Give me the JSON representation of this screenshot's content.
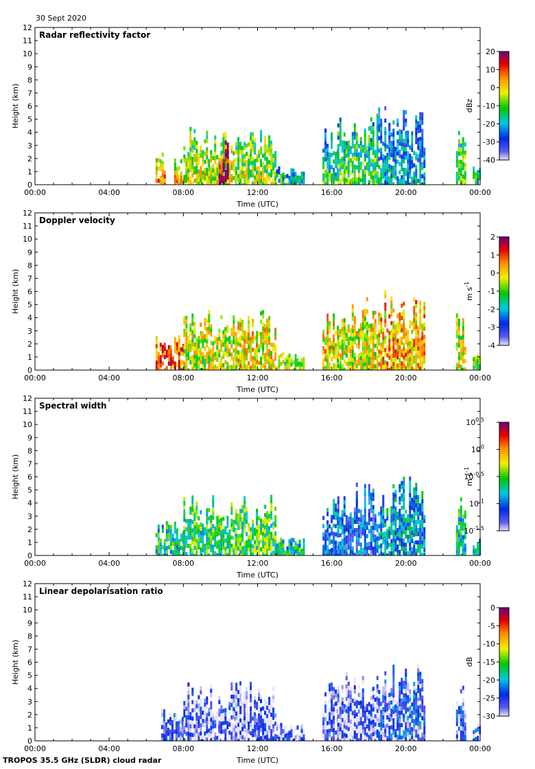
{
  "date_label": "30 Sept 2020",
  "footer_label": "TROPOS 35.5 GHz (SLDR) cloud radar",
  "chart_data": [
    {
      "type": "heatmap",
      "title": "Radar reflectivity factor",
      "xlabel": "Time (UTC)",
      "ylabel": "Height (km)",
      "x_ticks": [
        "00:00",
        "04:00",
        "08:00",
        "12:00",
        "16:00",
        "20:00",
        "00:00"
      ],
      "xlim_hours": [
        0,
        24
      ],
      "ylim_km": [
        0,
        12
      ],
      "y_ticks": [
        "0",
        "1",
        "2",
        "3",
        "4",
        "5",
        "6",
        "7",
        "8",
        "9",
        "10",
        "11",
        "12"
      ],
      "colorbar": {
        "ticks": [
          "20",
          "10",
          "0",
          "-10",
          "-20",
          "-30",
          "-40"
        ],
        "unit": "dBz",
        "unit_exp": "",
        "min": -40,
        "max": 20
      },
      "cloud_regions": [
        {
          "t_start": 6.5,
          "t_end": 7.0,
          "top_km": 2.8,
          "level": 0.6
        },
        {
          "t_start": 7.5,
          "t_end": 8.0,
          "top_km": 2.2,
          "level": 0.55
        },
        {
          "t_start": 8.0,
          "t_end": 10.8,
          "top_km": 4.5,
          "level": 0.5
        },
        {
          "t_start": 9.9,
          "t_end": 10.4,
          "top_km": 3.5,
          "level": 0.85
        },
        {
          "t_start": 10.8,
          "t_end": 13.0,
          "top_km": 4.6,
          "level": 0.45
        },
        {
          "t_start": 13.0,
          "t_end": 14.5,
          "top_km": 1.5,
          "level": 0.3
        },
        {
          "t_start": 15.5,
          "t_end": 16.3,
          "top_km": 4.8,
          "level": 0.3
        },
        {
          "t_start": 16.3,
          "t_end": 18.5,
          "top_km": 5.5,
          "level": 0.35
        },
        {
          "t_start": 18.5,
          "t_end": 21.0,
          "top_km": 6.0,
          "level": 0.2
        },
        {
          "t_start": 22.7,
          "t_end": 23.2,
          "top_km": 4.5,
          "level": 0.4
        },
        {
          "t_start": 23.6,
          "t_end": 24.0,
          "top_km": 1.5,
          "level": 0.3
        }
      ]
    },
    {
      "type": "heatmap",
      "title": "Doppler velocity",
      "xlabel": "Time (UTC)",
      "ylabel": "Height (km)",
      "x_ticks": [
        "00:00",
        "04:00",
        "08:00",
        "12:00",
        "16:00",
        "20:00",
        "00:00"
      ],
      "xlim_hours": [
        0,
        24
      ],
      "ylim_km": [
        0,
        12
      ],
      "y_ticks": [
        "0",
        "1",
        "2",
        "3",
        "4",
        "5",
        "6",
        "7",
        "8",
        "9",
        "10",
        "11",
        "12"
      ],
      "colorbar": {
        "ticks": [
          "2",
          "1",
          "0",
          "-1",
          "-2",
          "-3",
          "-4"
        ],
        "unit": "m s",
        "unit_exp": "-1",
        "min": -4,
        "max": 2
      },
      "cloud_regions": [
        {
          "t_start": 6.5,
          "t_end": 8.0,
          "top_km": 2.8,
          "level": 0.8
        },
        {
          "t_start": 8.0,
          "t_end": 10.8,
          "top_km": 4.6,
          "level": 0.6
        },
        {
          "t_start": 10.8,
          "t_end": 13.0,
          "top_km": 4.6,
          "level": 0.65
        },
        {
          "t_start": 13.0,
          "t_end": 14.5,
          "top_km": 1.5,
          "level": 0.55
        },
        {
          "t_start": 15.5,
          "t_end": 16.3,
          "top_km": 4.8,
          "level": 0.65
        },
        {
          "t_start": 16.3,
          "t_end": 18.5,
          "top_km": 5.6,
          "level": 0.62
        },
        {
          "t_start": 18.5,
          "t_end": 21.0,
          "top_km": 6.1,
          "level": 0.7
        },
        {
          "t_start": 22.7,
          "t_end": 23.2,
          "top_km": 4.5,
          "level": 0.6
        },
        {
          "t_start": 23.6,
          "t_end": 24.0,
          "top_km": 1.5,
          "level": 0.55
        }
      ]
    },
    {
      "type": "heatmap",
      "title": "Spectral width",
      "xlabel": "Time (UTC)",
      "ylabel": "Height (km)",
      "x_ticks": [
        "00:00",
        "04:00",
        "08:00",
        "12:00",
        "16:00",
        "20:00",
        "00:00"
      ],
      "xlim_hours": [
        0,
        24
      ],
      "ylim_km": [
        0,
        12
      ],
      "y_ticks": [
        "0",
        "1",
        "2",
        "3",
        "4",
        "5",
        "6",
        "7",
        "8",
        "9",
        "10",
        "11",
        "12"
      ],
      "colorbar": {
        "ticks_base": "10",
        "ticks_exp": [
          "0.5",
          "0",
          "-0.5",
          "-1",
          "-1.5"
        ],
        "unit": "m s",
        "unit_exp": "-1",
        "min": -1.5,
        "max": 0.5
      },
      "cloud_regions": [
        {
          "t_start": 6.5,
          "t_end": 8.0,
          "top_km": 2.7,
          "level": 0.4
        },
        {
          "t_start": 8.0,
          "t_end": 10.8,
          "top_km": 4.6,
          "level": 0.45
        },
        {
          "t_start": 10.8,
          "t_end": 13.0,
          "top_km": 4.7,
          "level": 0.48
        },
        {
          "t_start": 13.0,
          "t_end": 14.5,
          "top_km": 1.5,
          "level": 0.4
        },
        {
          "t_start": 15.5,
          "t_end": 16.3,
          "top_km": 4.8,
          "level": 0.25
        },
        {
          "t_start": 16.3,
          "t_end": 18.5,
          "top_km": 5.6,
          "level": 0.22
        },
        {
          "t_start": 18.5,
          "t_end": 21.0,
          "top_km": 6.1,
          "level": 0.3
        },
        {
          "t_start": 22.7,
          "t_end": 23.2,
          "top_km": 4.5,
          "level": 0.4
        },
        {
          "t_start": 23.6,
          "t_end": 24.0,
          "top_km": 1.5,
          "level": 0.35
        }
      ]
    },
    {
      "type": "heatmap",
      "title": "Linear depolarisation ratio",
      "xlabel": "Time (UTC)",
      "ylabel": "Height (km)",
      "x_ticks": [
        "00:00",
        "04:00",
        "08:00",
        "12:00",
        "16:00",
        "20:00",
        "00:00"
      ],
      "xlim_hours": [
        0,
        24
      ],
      "ylim_km": [
        0,
        12
      ],
      "y_ticks": [
        "0",
        "1",
        "2",
        "3",
        "4",
        "5",
        "6",
        "7",
        "8",
        "9",
        "10",
        "11",
        "12"
      ],
      "colorbar": {
        "ticks": [
          "0",
          "-5",
          "-10",
          "-15",
          "-20",
          "-25",
          "-30"
        ],
        "unit": "dB",
        "unit_exp": "",
        "min": -30,
        "max": 0
      },
      "cloud_regions": [
        {
          "t_start": 6.8,
          "t_end": 8.0,
          "top_km": 2.6,
          "level": 0.12
        },
        {
          "t_start": 8.0,
          "t_end": 10.8,
          "top_km": 4.5,
          "level": 0.08
        },
        {
          "t_start": 10.8,
          "t_end": 13.0,
          "top_km": 4.6,
          "level": 0.08
        },
        {
          "t_start": 13.0,
          "t_end": 14.5,
          "top_km": 1.5,
          "level": 0.1
        },
        {
          "t_start": 15.5,
          "t_end": 16.3,
          "top_km": 4.6,
          "level": 0.1
        },
        {
          "t_start": 16.3,
          "t_end": 18.5,
          "top_km": 5.3,
          "level": 0.08
        },
        {
          "t_start": 18.5,
          "t_end": 21.0,
          "top_km": 5.9,
          "level": 0.15
        },
        {
          "t_start": 22.7,
          "t_end": 23.2,
          "top_km": 4.5,
          "level": 0.12
        },
        {
          "t_start": 23.6,
          "t_end": 24.0,
          "top_km": 1.5,
          "level": 0.12
        }
      ]
    }
  ]
}
